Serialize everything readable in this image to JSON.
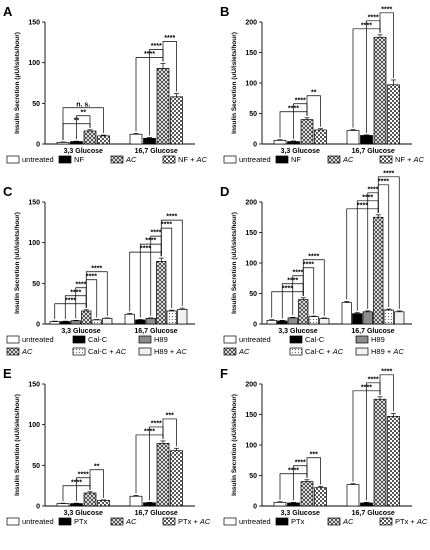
{
  "figure": {
    "layout": "3x2 grid of bar charts"
  },
  "chart_data": [
    {
      "panel": "A",
      "type": "bar",
      "ylabel": "Insulin Secretion (μU/islets/hour)",
      "ylim": [
        0,
        150
      ],
      "yticks": [
        "0",
        "50",
        "100",
        "150"
      ],
      "categories": [
        "3,3 Glucose",
        "16,7 Glucose"
      ],
      "series": [
        {
          "name": "untreated",
          "values": [
            2,
            12
          ]
        },
        {
          "name": "NF",
          "values": [
            3,
            7
          ]
        },
        {
          "name": "AC",
          "values": [
            16,
            93
          ]
        },
        {
          "name": "NF + AC",
          "values": [
            10,
            58
          ]
        }
      ],
      "errors": [
        [
          0.5,
          1
        ],
        [
          0.5,
          1
        ],
        [
          1.5,
          6
        ],
        [
          1,
          4
        ]
      ],
      "legend": [
        "untreated",
        "NF",
        "AC",
        "NF + AC"
      ],
      "significance": [
        {
          "group": 0,
          "from": 0,
          "to": 2,
          "label": "**"
        },
        {
          "group": 0,
          "from": 1,
          "to": 2,
          "label": "**"
        },
        {
          "group": 0,
          "from": 0,
          "to": 3,
          "label": "n. s."
        },
        {
          "group": 1,
          "from": 0,
          "to": 2,
          "label": "****"
        },
        {
          "group": 1,
          "from": 1,
          "to": 2,
          "label": "****"
        },
        {
          "group": 1,
          "from": 2,
          "to": 3,
          "label": "****"
        }
      ]
    },
    {
      "panel": "B",
      "type": "bar",
      "ylabel": "Insulin Secretion (uU/islets/hour)",
      "ylim": [
        0,
        200
      ],
      "yticks": [
        "0",
        "50",
        "100",
        "150",
        "200"
      ],
      "categories": [
        "3,3 Glucose",
        "16,7 Glucose"
      ],
      "series": [
        {
          "name": "untreated",
          "values": [
            6,
            22
          ]
        },
        {
          "name": "NF",
          "values": [
            4,
            14
          ]
        },
        {
          "name": "AC",
          "values": [
            40,
            175
          ]
        },
        {
          "name": "NF + AC",
          "values": [
            23,
            97
          ]
        }
      ],
      "errors": [
        [
          1,
          1.5
        ],
        [
          1,
          1
        ],
        [
          3,
          4
        ],
        [
          2,
          8
        ]
      ],
      "legend": [
        "untreated",
        "NF",
        "AC",
        "NF + AC"
      ],
      "significance": [
        {
          "group": 0,
          "from": 0,
          "to": 2,
          "label": "****"
        },
        {
          "group": 0,
          "from": 1,
          "to": 2,
          "label": "****"
        },
        {
          "group": 0,
          "from": 2,
          "to": 3,
          "label": "**"
        },
        {
          "group": 1,
          "from": 0,
          "to": 2,
          "label": "****"
        },
        {
          "group": 1,
          "from": 1,
          "to": 2,
          "label": "****"
        },
        {
          "group": 1,
          "from": 2,
          "to": 3,
          "label": "****"
        }
      ]
    },
    {
      "panel": "C",
      "type": "bar",
      "ylabel": "Insulin Secretion (uU/islets/hour)",
      "ylim": [
        0,
        150
      ],
      "yticks": [
        "0",
        "50",
        "100",
        "150"
      ],
      "categories": [
        "3,3 Glucose",
        "16,7 Glucose"
      ],
      "series": [
        {
          "name": "untreated",
          "values": [
            3,
            12
          ]
        },
        {
          "name": "Cal-C",
          "values": [
            3,
            5
          ]
        },
        {
          "name": "H89",
          "values": [
            4,
            7
          ]
        },
        {
          "name": "AC",
          "values": [
            16,
            77
          ]
        },
        {
          "name": "Cal-C + AC",
          "values": [
            5,
            16
          ]
        },
        {
          "name": "H89 + AC",
          "values": [
            7,
            18
          ]
        }
      ],
      "errors": [
        [
          0.5,
          1
        ],
        [
          0.5,
          0.5
        ],
        [
          0.5,
          0.5
        ],
        [
          1.5,
          4
        ],
        [
          0.5,
          1
        ],
        [
          0.5,
          1.5
        ]
      ],
      "legend": [
        "untreated",
        "Cal-C",
        "H89",
        "AC",
        "Cal-C + AC",
        "H89 + AC"
      ],
      "significance": [
        {
          "group": 0,
          "from": 0,
          "to": 3,
          "label": "****"
        },
        {
          "group": 0,
          "from": 1,
          "to": 3,
          "label": "****"
        },
        {
          "group": 0,
          "from": 2,
          "to": 3,
          "label": "****"
        },
        {
          "group": 0,
          "from": 3,
          "to": 4,
          "label": "****"
        },
        {
          "group": 0,
          "from": 3,
          "to": 5,
          "label": "****"
        },
        {
          "group": 1,
          "from": 0,
          "to": 3,
          "label": "****"
        },
        {
          "group": 1,
          "from": 1,
          "to": 3,
          "label": "****"
        },
        {
          "group": 1,
          "from": 2,
          "to": 3,
          "label": "****"
        },
        {
          "group": 1,
          "from": 3,
          "to": 4,
          "label": "****"
        },
        {
          "group": 1,
          "from": 3,
          "to": 5,
          "label": "****"
        }
      ]
    },
    {
      "panel": "D",
      "type": "bar",
      "ylabel": "Insulin Secretion (uU/islets/hour)",
      "ylim": [
        0,
        200
      ],
      "yticks": [
        "0",
        "50",
        "100",
        "150",
        "200"
      ],
      "categories": [
        "3,3 Glucose",
        "16,7 Glucose"
      ],
      "series": [
        {
          "name": "untreated",
          "values": [
            6,
            35
          ]
        },
        {
          "name": "Cal-C",
          "values": [
            5,
            17
          ]
        },
        {
          "name": "H89",
          "values": [
            10,
            20
          ]
        },
        {
          "name": "AC",
          "values": [
            40,
            175
          ]
        },
        {
          "name": "Cal-C + AC",
          "values": [
            12,
            23
          ]
        },
        {
          "name": "H89 + AC",
          "values": [
            9,
            20
          ]
        }
      ],
      "errors": [
        [
          1,
          2
        ],
        [
          1,
          1.5
        ],
        [
          1,
          1.5
        ],
        [
          3,
          4
        ],
        [
          1,
          1.5
        ],
        [
          1,
          1.5
        ]
      ],
      "legend": [
        "untreated",
        "Cal-C",
        "H89",
        "AC",
        "Cal-C + AC",
        "H89 + AC"
      ],
      "significance": [
        {
          "group": 0,
          "from": 0,
          "to": 3,
          "label": "****"
        },
        {
          "group": 0,
          "from": 1,
          "to": 3,
          "label": "****"
        },
        {
          "group": 0,
          "from": 2,
          "to": 3,
          "label": "****"
        },
        {
          "group": 0,
          "from": 3,
          "to": 4,
          "label": "****"
        },
        {
          "group": 0,
          "from": 3,
          "to": 5,
          "label": "****"
        },
        {
          "group": 1,
          "from": 0,
          "to": 3,
          "label": "****"
        },
        {
          "group": 1,
          "from": 1,
          "to": 3,
          "label": "****"
        },
        {
          "group": 1,
          "from": 2,
          "to": 3,
          "label": "****"
        },
        {
          "group": 1,
          "from": 3,
          "to": 4,
          "label": "****"
        },
        {
          "group": 1,
          "from": 3,
          "to": 5,
          "label": "****"
        }
      ]
    },
    {
      "panel": "E",
      "type": "bar",
      "ylabel": "Insulin Secretion (uU/islets/hour)",
      "ylim": [
        0,
        150
      ],
      "yticks": [
        "0",
        "50",
        "100",
        "150"
      ],
      "categories": [
        "3,3 Glucose",
        "16,7 Glucose"
      ],
      "series": [
        {
          "name": "untreated",
          "values": [
            3,
            12
          ]
        },
        {
          "name": "PTx",
          "values": [
            3,
            4
          ]
        },
        {
          "name": "AC",
          "values": [
            16,
            77
          ]
        },
        {
          "name": "PTx + AC",
          "values": [
            7,
            68
          ]
        }
      ],
      "errors": [
        [
          0.5,
          1
        ],
        [
          0.5,
          0.5
        ],
        [
          1.5,
          3
        ],
        [
          0.5,
          3
        ]
      ],
      "legend": [
        "untreated",
        "PTx",
        "AC",
        "PTx + AC"
      ],
      "significance": [
        {
          "group": 0,
          "from": 0,
          "to": 2,
          "label": "****"
        },
        {
          "group": 0,
          "from": 1,
          "to": 2,
          "label": "****"
        },
        {
          "group": 0,
          "from": 2,
          "to": 3,
          "label": "**"
        },
        {
          "group": 1,
          "from": 0,
          "to": 2,
          "label": "****"
        },
        {
          "group": 1,
          "from": 1,
          "to": 2,
          "label": "****"
        },
        {
          "group": 1,
          "from": 2,
          "to": 3,
          "label": "***"
        }
      ]
    },
    {
      "panel": "F",
      "type": "bar",
      "ylabel": "Insulin Secretion (uU/islets/hour)",
      "ylim": [
        0,
        200
      ],
      "yticks": [
        "0",
        "50",
        "100",
        "150",
        "200"
      ],
      "categories": [
        "3,3 Glucose",
        "16,7 Glucose"
      ],
      "series": [
        {
          "name": "untreated",
          "values": [
            6,
            35
          ]
        },
        {
          "name": "PTx",
          "values": [
            5,
            5
          ]
        },
        {
          "name": "AC",
          "values": [
            40,
            175
          ]
        },
        {
          "name": "PTx + AC",
          "values": [
            30,
            147
          ]
        }
      ],
      "errors": [
        [
          1,
          1.5
        ],
        [
          1,
          1
        ],
        [
          3,
          4
        ],
        [
          2,
          5
        ]
      ],
      "legend": [
        "untreated",
        "PTx",
        "AC",
        "PTx + AC"
      ],
      "significance": [
        {
          "group": 0,
          "from": 0,
          "to": 2,
          "label": "****"
        },
        {
          "group": 0,
          "from": 1,
          "to": 2,
          "label": "****"
        },
        {
          "group": 0,
          "from": 2,
          "to": 3,
          "label": "***"
        },
        {
          "group": 1,
          "from": 0,
          "to": 2,
          "label": "****"
        },
        {
          "group": 1,
          "from": 1,
          "to": 2,
          "label": "****"
        },
        {
          "group": 1,
          "from": 2,
          "to": 3,
          "label": "****"
        }
      ]
    }
  ]
}
